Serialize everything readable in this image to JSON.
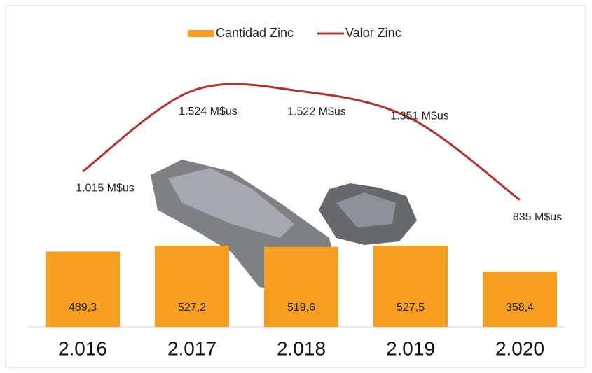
{
  "chart_data": {
    "type": "combo",
    "categories": [
      "2.016",
      "2.017",
      "2.018",
      "2.019",
      "2.020"
    ],
    "series": [
      {
        "name": "Cantidad Zinc",
        "type": "bar",
        "color": "#f59e1f",
        "values": [
          489.3,
          527.2,
          519.6,
          527.5,
          358.4
        ],
        "value_labels": [
          "489,3",
          "527,2",
          "519,6",
          "527,5",
          "358,4"
        ]
      },
      {
        "name": "Valor Zinc",
        "type": "line",
        "color": "#b5312a",
        "values": [
          1015,
          1524,
          1522,
          1351,
          835
        ],
        "value_labels": [
          "1.015 M$us",
          "1.524 M$us",
          "1.522 M$us",
          "1.351 M$us",
          "835 M$us"
        ]
      }
    ]
  }
}
